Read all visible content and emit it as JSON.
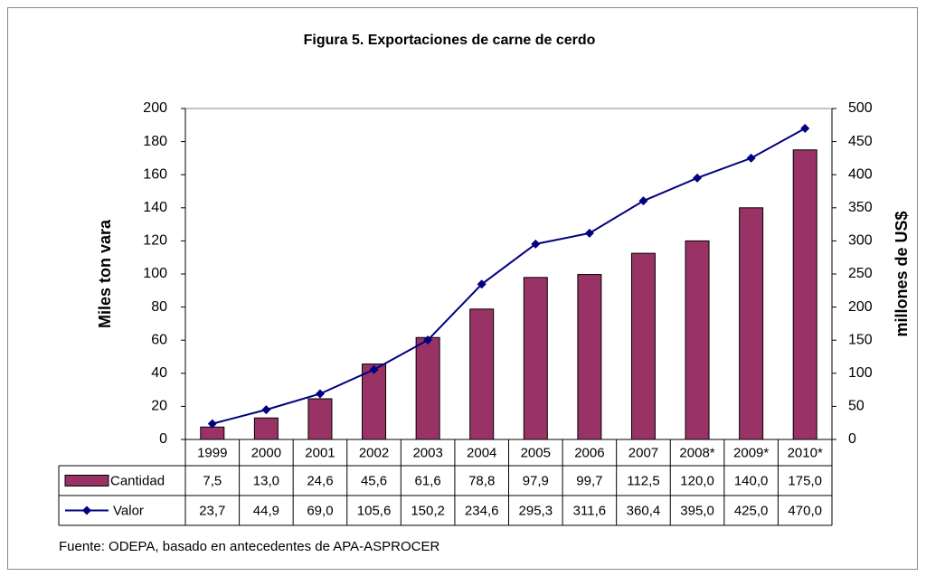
{
  "chart_data": {
    "type": "bar",
    "title": "Figura 5. Exportaciones de carne de cerdo",
    "ylabel": "Miles ton vara",
    "y2label": "millones de US$",
    "source": "Fuente: ODEPA, basado en antecedentes de APA-ASPROCER",
    "categories": [
      "1999",
      "2000",
      "2001",
      "2002",
      "2003",
      "2004",
      "2005",
      "2006",
      "2007",
      "2008*",
      "2009*",
      "2010*"
    ],
    "series": [
      {
        "name": "Cantidad",
        "type": "bar",
        "color": "#993366",
        "axis": "y",
        "values": [
          7.5,
          13.0,
          24.6,
          45.6,
          61.6,
          78.8,
          97.9,
          99.7,
          112.5,
          120.0,
          140.0,
          175.0
        ],
        "value_labels": [
          "7,5",
          "13,0",
          "24,6",
          "45,6",
          "61,6",
          "78,8",
          "97,9",
          "99,7",
          "112,5",
          "120,0",
          "140,0",
          "175,0"
        ]
      },
      {
        "name": "Valor",
        "type": "line",
        "color": "#000080",
        "axis": "y2",
        "values": [
          23.7,
          44.9,
          69.0,
          105.6,
          150.2,
          234.6,
          295.3,
          311.6,
          360.4,
          395.0,
          425.0,
          470.0
        ],
        "value_labels": [
          "23,7",
          "44,9",
          "69,0",
          "105,6",
          "150,2",
          "234,6",
          "295,3",
          "311,6",
          "360,4",
          "395,0",
          "425,0",
          "470,0"
        ]
      }
    ],
    "ylim": [
      0,
      200
    ],
    "yticks": [
      0,
      20,
      40,
      60,
      80,
      100,
      120,
      140,
      160,
      180,
      200
    ],
    "y2lim": [
      0,
      500
    ],
    "y2ticks": [
      0,
      50,
      100,
      150,
      200,
      250,
      300,
      350,
      400,
      450,
      500
    ],
    "grid": false
  }
}
